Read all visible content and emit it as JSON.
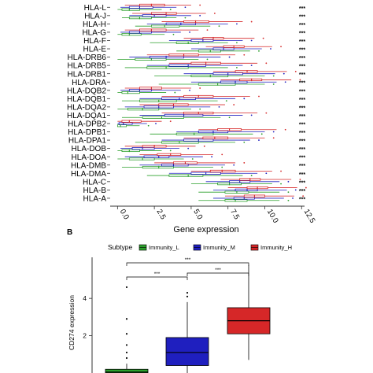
{
  "chart_data": [
    {
      "type": "boxplot",
      "orientation": "horizontal",
      "xlabel": "Gene expression",
      "ylabel": "",
      "xlim": [
        -0.5,
        12.7
      ],
      "xticks": [
        "0.0",
        "2.5",
        "5.0",
        "7.5",
        "10.0",
        "12.5"
      ],
      "x_tick_values": [
        0,
        2.5,
        5,
        7.5,
        10,
        12.5
      ],
      "grid": false,
      "genes": [
        "HLA-L",
        "HLA-J",
        "HLA-H",
        "HLA-G",
        "HLA-F",
        "HLA-E",
        "HLA-DRB6",
        "HLA-DRB5",
        "HLA-DRB1",
        "HLA-DRA",
        "HLA-DQB2",
        "HLA-DQB1",
        "HLA-DQA2",
        "HLA-DQA1",
        "HLA-DPB2",
        "HLA-DPB1",
        "HLA-DPA1",
        "HLA-DOB",
        "HLA-DOA",
        "HLA-DMB",
        "HLA-DMA",
        "HLA-C",
        "HLA-B",
        "HLA-A"
      ],
      "significance": [
        "***",
        "***",
        "***",
        "***",
        "***",
        "***",
        "***",
        "***",
        "***",
        "***",
        "***",
        "***",
        "***",
        "***",
        "***",
        "***",
        "***",
        "***",
        "***",
        "***",
        "***",
        "***",
        "***",
        "***"
      ],
      "series_colors": [
        "#2ca02c",
        "#1f1fbf",
        "#d62728"
      ],
      "series": [
        {
          "name": "Immunity_L",
          "color": "#2ca02c",
          "boxes": [
            [
              0.0,
              0.3,
              0.8,
              1.5,
              3.0
            ],
            [
              0.3,
              0.8,
              1.5,
              2.3,
              4.0
            ],
            [
              1.2,
              2.3,
              3.2,
              4.2,
              6.3
            ],
            [
              0.0,
              0.3,
              0.8,
              1.6,
              3.2
            ],
            [
              2.2,
              4.0,
              4.8,
              5.5,
              7.5
            ],
            [
              4.0,
              5.5,
              6.3,
              7.0,
              9.0
            ],
            [
              0.0,
              1.2,
              2.3,
              3.3,
              5.5
            ],
            [
              0.5,
              2.0,
              3.3,
              4.8,
              7.5
            ],
            [
              2.5,
              5.0,
              6.3,
              7.5,
              10.0
            ],
            [
              2.8,
              5.5,
              6.8,
              8.0,
              10.0
            ],
            [
              0.0,
              0.3,
              0.7,
              1.5,
              3.3
            ],
            [
              0.3,
              1.5,
              2.8,
              4.0,
              6.8
            ],
            [
              0.0,
              0.7,
              1.7,
              2.8,
              5.0
            ],
            [
              0.3,
              1.7,
              3.0,
              4.5,
              7.0
            ],
            [
              0.0,
              0.0,
              0.2,
              0.6,
              1.5
            ],
            [
              2.2,
              4.0,
              5.2,
              6.5,
              9.2
            ],
            [
              1.2,
              3.0,
              4.2,
              5.5,
              8.0
            ],
            [
              0.0,
              0.3,
              0.8,
              1.5,
              3.0
            ],
            [
              0.0,
              0.8,
              1.7,
              2.5,
              4.5
            ],
            [
              0.3,
              1.7,
              2.8,
              3.8,
              6.5
            ],
            [
              2.0,
              3.5,
              4.8,
              5.8,
              8.5
            ],
            [
              5.0,
              6.8,
              7.6,
              8.4,
              10.5
            ],
            [
              5.5,
              7.3,
              8.1,
              8.9,
              11.0
            ],
            [
              5.5,
              7.3,
              8.0,
              8.8,
              11.0
            ]
          ]
        },
        {
          "name": "Immunity_M",
          "color": "#1f1fbf",
          "boxes": [
            [
              0.2,
              0.8,
              1.5,
              2.4,
              4.0
            ],
            [
              0.8,
              1.7,
              2.5,
              3.3,
              5.0
            ],
            [
              2.0,
              3.3,
              4.3,
              5.3,
              7.5
            ],
            [
              0.2,
              0.8,
              1.5,
              2.3,
              4.3
            ],
            [
              3.5,
              5.0,
              5.8,
              6.5,
              8.5
            ],
            [
              5.0,
              6.5,
              7.2,
              7.9,
              9.8
            ],
            [
              0.8,
              2.2,
              3.3,
              4.5,
              7.0
            ],
            [
              2.0,
              3.5,
              4.8,
              6.0,
              8.5
            ],
            [
              4.5,
              6.5,
              7.5,
              8.5,
              10.7
            ],
            [
              5.0,
              7.0,
              8.0,
              8.8,
              10.8
            ],
            [
              0.2,
              0.8,
              1.5,
              2.3,
              4.3
            ],
            [
              1.5,
              3.0,
              4.2,
              5.3,
              8.0
            ],
            [
              0.5,
              1.8,
              2.8,
              3.8,
              6.3
            ],
            [
              1.5,
              3.2,
              4.5,
              5.8,
              8.5
            ],
            [
              0.0,
              0.1,
              0.4,
              1.0,
              2.0
            ],
            [
              4.0,
              5.5,
              6.5,
              7.5,
              10.0
            ],
            [
              3.0,
              4.5,
              5.5,
              6.5,
              9.0
            ],
            [
              0.2,
              1.0,
              1.7,
              2.5,
              4.2
            ],
            [
              0.5,
              1.8,
              2.8,
              3.5,
              5.8
            ],
            [
              1.5,
              3.0,
              3.8,
              4.8,
              7.3
            ],
            [
              3.5,
              5.0,
              6.0,
              7.0,
              9.5
            ],
            [
              6.0,
              7.6,
              8.3,
              9.0,
              11.0
            ],
            [
              6.5,
              8.0,
              8.8,
              9.5,
              11.5
            ],
            [
              6.5,
              7.9,
              8.6,
              9.3,
              11.3
            ]
          ]
        },
        {
          "name": "Immunity_H",
          "color": "#d62728",
          "boxes": [
            [
              0.5,
              1.5,
              2.3,
              3.2,
              5.0
            ],
            [
              1.0,
              2.3,
              3.3,
              4.0,
              6.0
            ],
            [
              3.0,
              4.5,
              5.3,
              6.2,
              8.5
            ],
            [
              0.5,
              1.5,
              2.3,
              3.3,
              5.5
            ],
            [
              4.5,
              5.8,
              6.5,
              7.2,
              9.3
            ],
            [
              6.0,
              7.2,
              7.9,
              8.6,
              10.5
            ],
            [
              2.0,
              3.5,
              4.5,
              5.5,
              8.0
            ],
            [
              3.5,
              5.0,
              6.0,
              7.0,
              9.5
            ],
            [
              6.5,
              8.0,
              8.8,
              9.5,
              11.5
            ],
            [
              7.0,
              8.3,
              9.1,
              9.8,
              11.8
            ],
            [
              0.5,
              1.5,
              2.3,
              3.0,
              5.0
            ],
            [
              3.0,
              4.5,
              5.5,
              6.5,
              9.0
            ],
            [
              1.5,
              2.8,
              3.8,
              4.8,
              7.3
            ],
            [
              3.0,
              4.5,
              5.5,
              6.5,
              9.5
            ],
            [
              0.0,
              0.3,
              0.8,
              1.6,
              3.0
            ],
            [
              5.5,
              6.8,
              7.6,
              8.4,
              10.8
            ],
            [
              4.5,
              5.8,
              6.6,
              7.5,
              10.0
            ],
            [
              0.5,
              1.7,
              2.5,
              3.3,
              5.3
            ],
            [
              1.5,
              2.7,
              3.6,
              4.3,
              6.5
            ],
            [
              2.5,
              3.8,
              4.6,
              5.4,
              8.0
            ],
            [
              5.0,
              6.3,
              7.1,
              8.0,
              10.5
            ],
            [
              7.0,
              8.3,
              9.0,
              9.7,
              11.8
            ],
            [
              7.5,
              8.8,
              9.5,
              10.2,
              12.2
            ],
            [
              7.3,
              8.6,
              9.3,
              10.0,
              12.0
            ]
          ]
        }
      ]
    },
    {
      "type": "boxplot",
      "orientation": "vertical",
      "panel_label": "B",
      "legend_title": "Subtype",
      "legend_position": "top",
      "categories": [
        "Immunity_L",
        "Immunity_M",
        "Immunity_H"
      ],
      "ylabel": "CD274 expression",
      "xlabel": "",
      "ylim": [
        0,
        6.2
      ],
      "yticks": [
        "2",
        "4"
      ],
      "y_tick_values": [
        2,
        4
      ],
      "comparisons": [
        {
          "pair": [
            "Immunity_L",
            "Immunity_M"
          ],
          "label": "***"
        },
        {
          "pair": [
            "Immunity_M",
            "Immunity_H"
          ],
          "label": "***"
        },
        {
          "pair": [
            "Immunity_L",
            "Immunity_H"
          ],
          "label": "***"
        }
      ],
      "series": [
        {
          "name": "Immunity_L",
          "color": "#2ca02c",
          "box": [
            0,
            0,
            0.05,
            0.2,
            0.5
          ],
          "outliers": [
            0.8,
            1.1,
            1.5,
            2.1,
            2.9,
            4.6
          ]
        },
        {
          "name": "Immunity_M",
          "color": "#1f1fbf",
          "box": [
            0,
            0.4,
            1.1,
            1.9,
            3.8
          ],
          "outliers": [
            4.1,
            4.3
          ]
        },
        {
          "name": "Immunity_H",
          "color": "#d62728",
          "box": [
            0.7,
            2.1,
            2.8,
            3.5,
            5.8
          ],
          "outliers": []
        }
      ]
    }
  ]
}
